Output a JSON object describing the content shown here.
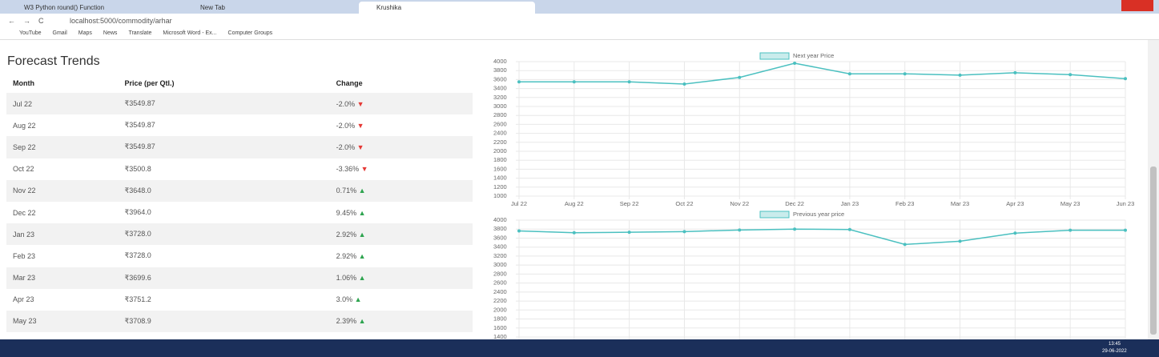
{
  "browser": {
    "tabs": [
      "W3 Python round() Function",
      "New Tab",
      "Krushika"
    ],
    "url": "localhost:5000/commodity/arhar",
    "bookmarks": [
      "YouTube",
      "Gmail",
      "Maps",
      "News",
      "Translate",
      "Microsoft Word - Ex...",
      "Computer Groups"
    ]
  },
  "table": {
    "title": "Forecast Trends",
    "headers": [
      "Month",
      "Price (per Qtl.)",
      "Change"
    ],
    "rows": [
      [
        "Jul 22",
        "₹3549.87",
        "-2.0%"
      ],
      [
        "Aug 22",
        "₹3549.87",
        "-2.0%"
      ],
      [
        "Sep 22",
        "₹3549.87",
        "-2.0%"
      ],
      [
        "Oct 22",
        "₹3500.8",
        "-3.36%"
      ],
      [
        "Nov 22",
        "₹3648.0",
        "0.71%"
      ],
      [
        "Dec 22",
        "₹3964.0",
        "9.45%"
      ],
      [
        "Jan 23",
        "₹3728.0",
        "2.92%"
      ],
      [
        "Feb 23",
        "₹3728.0",
        "2.92%"
      ],
      [
        "Mar 23",
        "₹3699.6",
        "1.06%"
      ],
      [
        "Apr 23",
        "₹3751.2",
        "3.0%"
      ],
      [
        "May 23",
        "₹3708.9",
        "2.39%"
      ]
    ]
  },
  "taskbar": {
    "time": "13:45",
    "date": "29-06-2022"
  },
  "chart_data": [
    {
      "type": "line",
      "categories": [
        "Jul 22",
        "Aug 22",
        "Sep 22",
        "Oct 22",
        "Nov 22",
        "Dec 22",
        "Jan 23",
        "Feb 23",
        "Mar 23",
        "Apr 23",
        "May 23",
        "Jun 23"
      ],
      "series": [
        {
          "name": "Next year Price",
          "color": "#4bc0c0",
          "values": [
            3549.87,
            3549.87,
            3549.87,
            3500.8,
            3648.0,
            3964.0,
            3728.0,
            3728.0,
            3699.6,
            3751.2,
            3708.9,
            3620
          ]
        }
      ],
      "ylim": [
        1000,
        4000
      ],
      "yticks": [
        1000,
        1200,
        1400,
        1600,
        1800,
        2000,
        2200,
        2400,
        2600,
        2800,
        3000,
        3200,
        3400,
        3600,
        3800,
        4000
      ],
      "grid": true
    },
    {
      "type": "line",
      "series": [
        {
          "name": "Previous year price",
          "color": "#4bc0c0",
          "values": [
            3760,
            3720,
            3730,
            3745,
            3780,
            3800,
            3790,
            3460,
            3530,
            3710,
            3775,
            3775
          ]
        }
      ],
      "ylim": [
        1400,
        4000
      ],
      "yticks": [
        1400,
        1600,
        1800,
        2000,
        2200,
        2400,
        2600,
        2800,
        3000,
        3200,
        3400,
        3600,
        3800,
        4000
      ],
      "grid": true
    }
  ]
}
